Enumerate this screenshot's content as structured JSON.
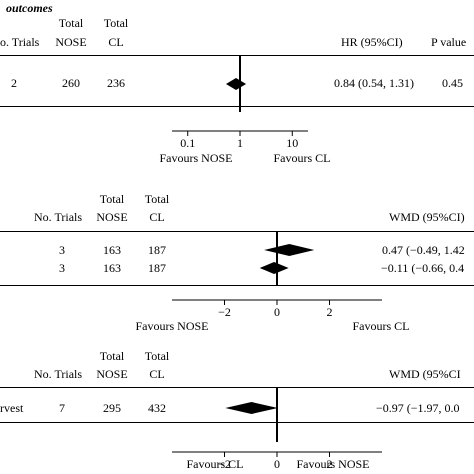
{
  "chart_data": [
    {
      "type": "forest",
      "title": "outcomes",
      "headers": {
        "trials": "No. Trials",
        "nose": "Total\nNOSE",
        "cl": "Total\nCL",
        "effect": "HR (95%CI)",
        "p": "P value"
      },
      "rows": [
        {
          "trials": "2",
          "nose": "260",
          "cl": "236",
          "effect": "0.84 (0.54, 1.31)",
          "p": "0.45",
          "estimate": 0.84,
          "lower": 0.54,
          "upper": 1.31
        }
      ],
      "scale": "log",
      "xlim": [
        0.05,
        20
      ],
      "ref": 1,
      "ticks": [
        {
          "v": 0.1,
          "label": "0.1"
        },
        {
          "v": 1,
          "label": "1"
        },
        {
          "v": 10,
          "label": "10"
        }
      ],
      "favours_left": "Favours NOSE",
      "favours_right": "Favours CL"
    },
    {
      "type": "forest",
      "headers": {
        "trials": "No. Trials",
        "nose": "Total\nNOSE",
        "cl": "Total\nCL",
        "effect": "WMD (95%CI)"
      },
      "rows": [
        {
          "trials": "3",
          "nose": "163",
          "cl": "187",
          "effect": "0.47 (−0.49, 1.42",
          "estimate": 0.47,
          "lower": -0.49,
          "upper": 1.42
        },
        {
          "trials": "3",
          "nose": "163",
          "cl": "187",
          "effect": "−0.11 (−0.66, 0.4",
          "estimate": -0.11,
          "lower": -0.66,
          "upper": 0.44
        }
      ],
      "scale": "linear",
      "xlim": [
        -4,
        4
      ],
      "ref": 0,
      "ticks": [
        {
          "v": -2,
          "label": "−2"
        },
        {
          "v": 0,
          "label": "0"
        },
        {
          "v": 2,
          "label": "2"
        }
      ],
      "favours_left": "Favours NOSE",
      "favours_right": "Favours CL"
    },
    {
      "type": "forest",
      "headers": {
        "trials": "No. Trials",
        "nose": "Total\nNOSE",
        "cl": "Total\nCL",
        "effect": "WMD (95%CI"
      },
      "rows": [
        {
          "label": "rvest",
          "trials": "7",
          "nose": "295",
          "cl": "432",
          "effect": "−0.97 (−1.97, 0.0",
          "estimate": -0.97,
          "lower": -1.97,
          "upper": 0.03
        }
      ],
      "scale": "linear",
      "xlim": [
        -4,
        4
      ],
      "ref": 0,
      "ticks": [
        {
          "v": -2,
          "label": "−2"
        },
        {
          "v": 0,
          "label": "0"
        },
        {
          "v": 2,
          "label": "2"
        }
      ],
      "favours_left": "Favours CL",
      "favours_right": "Favours NOSE"
    }
  ]
}
